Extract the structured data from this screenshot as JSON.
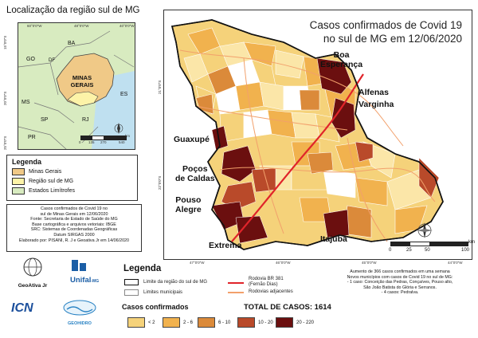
{
  "inset": {
    "title": "Localização da região sul de MG",
    "top_ticks": [
      "60°0'0\"W",
      "48°0'0\"W",
      "40°0'0\"W"
    ],
    "left_ticks": [
      "15°0'0\"S",
      "20°0'0\"S",
      "25°0'0\"S"
    ],
    "state_labels": [
      "BA",
      "GO",
      "DF",
      "MINAS GERAIS",
      "ES",
      "MS",
      "SP",
      "RJ",
      "PR"
    ],
    "scale_labels": [
      "0",
      "135",
      "270",
      "540"
    ],
    "scale_unit": "km"
  },
  "legend_inset": {
    "items": [
      {
        "label": "Minas Gerais",
        "color": "#f0c987"
      },
      {
        "label": "Região sul de MG",
        "color": "#fdf3a8"
      },
      {
        "label": "Estados Limítrofes",
        "color": "#d8ebc0"
      }
    ]
  },
  "credits": {
    "lines": [
      "Casos confirmados de Covid 19 no",
      "sul de Minas Gerais em 12/06/2020",
      "Fonte: Secretaria de Estado de Saúde do MG",
      "Base cartográfica e arquivos vetoriais: IBGE",
      "SRC: Sistemas de Coordenadas Geográficas",
      "Datum SIRGAS 2000",
      "Elaborado por: PISANI, R. J e Geoativa Jr em 14/06/2020"
    ]
  },
  "main_map": {
    "title_line1": "Casos confirmados de Covid 19",
    "title_line2": "no sul de MG em 12/06/2020",
    "left_ticks": [
      "21°0'0\"S",
      "22°0'0\"S"
    ],
    "bottom_ticks": [
      "47°0'0\"W",
      "46°0'0\"W",
      "45°0'0\"W",
      "44°0'0\"W"
    ],
    "cities": {
      "boa_esperanca": "Boa\nEsperança",
      "alfenas": "Alfenas",
      "varginha": "Varginha",
      "guaxupe": "Guaxupé",
      "pocos_de_caldas": "Poços\nde Caldas",
      "pouso_alegre": "Pouso\nAlegre",
      "extrema": "Extrema",
      "itajuba": "Itajubá"
    },
    "scale_labels": [
      "0",
      "25",
      "50",
      "100"
    ],
    "scale_unit": "km"
  },
  "legend": {
    "title": "Legenda",
    "region_limit": "Limite da região do sul de MG",
    "municipal_limits": "Limites municipais",
    "highway_label_1": "Rodovia BR 381",
    "highway_label_2": "(Fernão Dias)",
    "adjacent_highways": "Rodovias adjacentes",
    "highway_color": "#e0242a",
    "adjacent_color": "#f2a06b"
  },
  "cases": {
    "title": "Casos confirmados",
    "total_label": "TOTAL DE CASOS: 1614",
    "classes": [
      {
        "label": "< 2",
        "color": "#f5d27a"
      },
      {
        "label": "2 - 6",
        "color": "#f1b24e"
      },
      {
        "label": "6 - 10",
        "color": "#db8a3a"
      },
      {
        "label": "10 - 20",
        "color": "#b94a2a"
      },
      {
        "label": "20 - 220",
        "color": "#6b0f0f"
      }
    ]
  },
  "note": {
    "lines": [
      "Aumento de 366 casos confirmados em uma semana",
      "Novos municípios com casos de Covid 19 no sul de MG:",
      "- 1 caso: Conceição das Pedras, Conçaíves, Pouso alto,",
      "São João Batista do Glória e Serranos.",
      "- 4 casos: Pedralva."
    ]
  },
  "logos": {
    "geoativa": "GeoAtiva Jr",
    "unifal": "Unifal",
    "unifal_sub": "-MG",
    "icn": "ICN",
    "geohidro": "GEOHIDRO"
  }
}
